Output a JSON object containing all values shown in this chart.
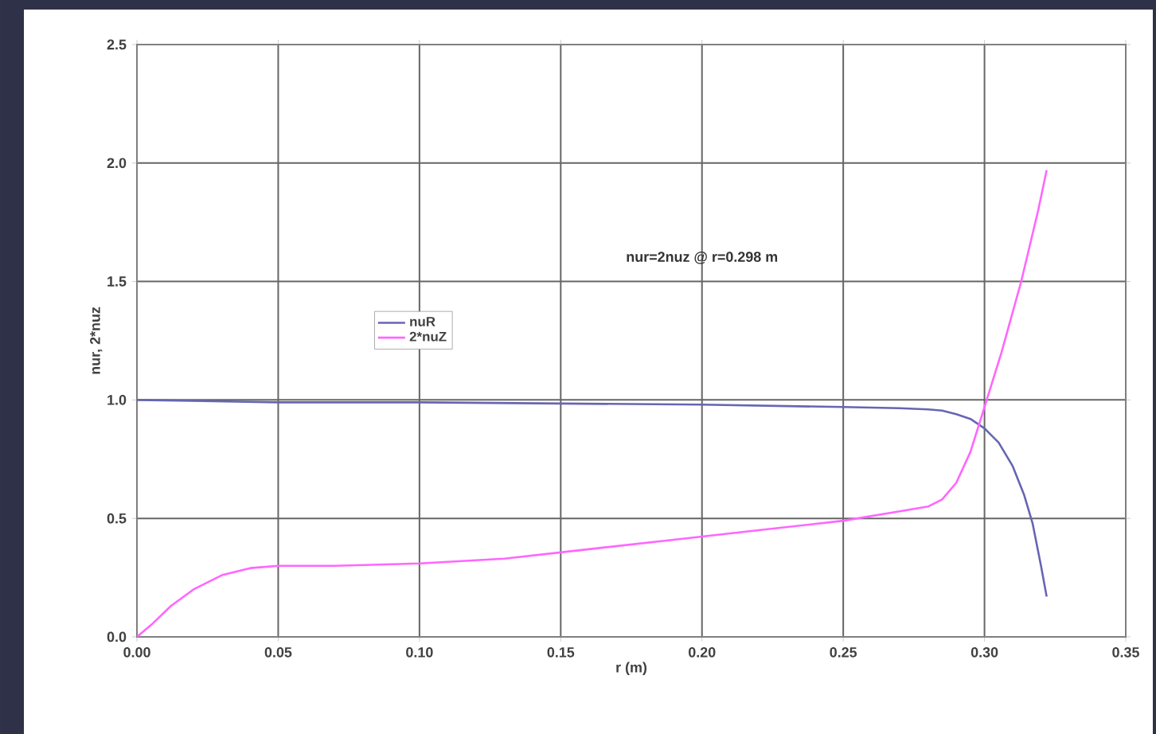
{
  "chart_data": {
    "type": "line",
    "xlabel": "r (m)",
    "ylabel": "nur, 2*nuz",
    "annotations": [
      "nur=2nuz @ r=0.298 m"
    ],
    "series": [
      {
        "name": "nuR",
        "color": "#6666b3",
        "x": [
          0,
          0.05,
          0.1,
          0.15,
          0.2,
          0.25,
          0.27,
          0.28,
          0.285,
          0.29,
          0.295,
          0.3,
          0.305,
          0.31,
          0.314,
          0.317,
          0.32,
          0.322
        ],
        "values": [
          1.0,
          0.99,
          0.99,
          0.985,
          0.98,
          0.97,
          0.965,
          0.96,
          0.955,
          0.94,
          0.92,
          0.88,
          0.82,
          0.72,
          0.6,
          0.48,
          0.3,
          0.17
        ]
      },
      {
        "name": "2*nuZ",
        "color": "#ff66ff",
        "x": [
          0,
          0.005,
          0.012,
          0.02,
          0.03,
          0.04,
          0.05,
          0.07,
          0.1,
          0.13,
          0.16,
          0.19,
          0.22,
          0.25,
          0.27,
          0.28,
          0.285,
          0.29,
          0.295,
          0.3,
          0.306,
          0.313,
          0.319,
          0.322
        ],
        "values": [
          0.0,
          0.05,
          0.13,
          0.2,
          0.26,
          0.29,
          0.3,
          0.3,
          0.31,
          0.33,
          0.37,
          0.41,
          0.45,
          0.49,
          0.53,
          0.55,
          0.58,
          0.65,
          0.78,
          0.97,
          1.2,
          1.5,
          1.8,
          1.97
        ]
      }
    ],
    "xlim": [
      0,
      0.35
    ],
    "ylim": [
      0,
      2.5
    ],
    "xticks": [
      {
        "value": 0,
        "label": "0.00"
      },
      0.05,
      {
        "value": 0.1,
        "label": "0.10"
      },
      0.15,
      {
        "value": 0.2,
        "label": "0.20"
      },
      0.25,
      {
        "value": 0.3,
        "label": "0.30"
      },
      0.35
    ],
    "yticks": [
      {
        "value": 0,
        "label": "0.0"
      },
      0.5,
      {
        "value": 1,
        "label": "1.0"
      },
      1.5,
      {
        "value": 2,
        "label": "2.0"
      },
      2.5
    ],
    "grid": true,
    "legend": "center left",
    "marker": "none",
    "line_style": "solid"
  }
}
